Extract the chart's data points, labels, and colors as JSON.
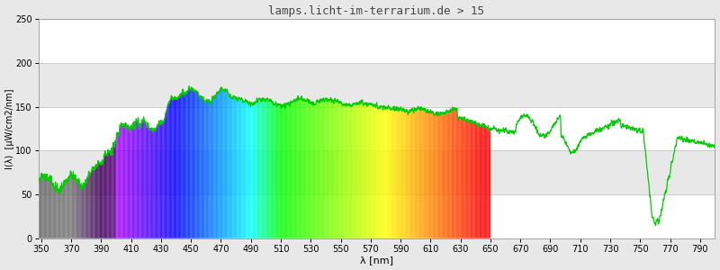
{
  "title": "lamps.licht-im-terrarium.de > 15",
  "xlabel": "λ [nm]",
  "ylabel": "I(λ)  [µW/cm2/nm]",
  "xlim": [
    348,
    800
  ],
  "ylim": [
    0,
    250
  ],
  "yticks": [
    0,
    50,
    100,
    150,
    200,
    250
  ],
  "xticks": [
    350,
    370,
    390,
    410,
    430,
    450,
    470,
    490,
    510,
    530,
    550,
    570,
    590,
    610,
    630,
    650,
    670,
    690,
    710,
    730,
    750,
    770,
    790
  ],
  "background_color": "#e8e8e8",
  "band_colors": [
    "#ffffff",
    "#e8e8e8"
  ],
  "grid_color": "#cccccc",
  "title_color": "#444444",
  "line_color": "#00cc00",
  "spectrum_end_nm": 650,
  "figwidth": 8.0,
  "figheight": 3.0,
  "dpi": 100
}
